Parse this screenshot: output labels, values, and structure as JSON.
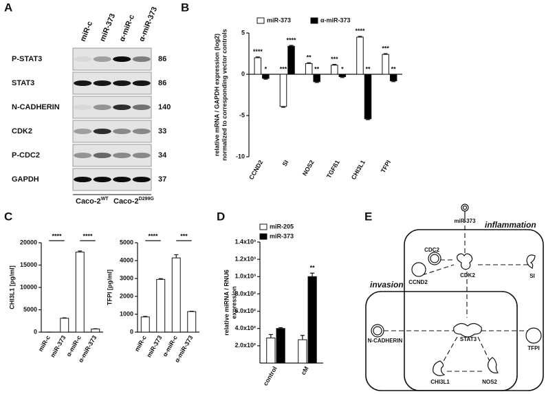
{
  "panels": [
    "A",
    "B",
    "C",
    "D",
    "E"
  ],
  "blot": {
    "columns": [
      "miR-c",
      "miR-373",
      "α-miR-c",
      "α-miR-373"
    ],
    "rows": [
      {
        "label": "P-STAT3",
        "mw": 86
      },
      {
        "label": "STAT3",
        "mw": 86
      },
      {
        "label": "N-CADHERIN",
        "mw": 140
      },
      {
        "label": "CDK2",
        "mw": 33
      },
      {
        "label": "P-CDC2",
        "mw": 34
      },
      {
        "label": "GAPDH",
        "mw": 37
      }
    ],
    "groups": [
      {
        "name": "Caco-2",
        "sup": "WT"
      },
      {
        "name": "Caco-2",
        "sup": "D299G"
      }
    ]
  },
  "chart_data": [
    {
      "type": "bar",
      "ylabel": [
        "relative mRNA / GAPDH expression (log2)",
        "normalized to corresponding vector controls"
      ],
      "categories": [
        "CCND2",
        "SI",
        "NOS2",
        "TGFß1",
        "CHI3L1",
        "TFPI"
      ],
      "series": [
        {
          "name": "miR-373",
          "color": "#ffffff",
          "values": [
            2.0,
            -3.9,
            1.3,
            1.1,
            4.5,
            2.4
          ],
          "errors": [
            0.1,
            0.1,
            0.1,
            0.1,
            0.1,
            0.1
          ],
          "significance": [
            "****",
            "***",
            "**",
            "***",
            "****",
            "***"
          ]
        },
        {
          "name": "α-miR-373",
          "color": "#000000",
          "values": [
            -0.5,
            3.4,
            -0.9,
            -0.3,
            -5.4,
            -0.8
          ],
          "errors": [
            0.1,
            0.1,
            0.1,
            0.1,
            0.1,
            0.1
          ],
          "significance": [
            "*",
            "****",
            "**",
            "*",
            "**",
            "**"
          ]
        }
      ],
      "ylim": [
        -10,
        5
      ],
      "yticks": [
        -10,
        -5,
        0,
        5
      ]
    },
    {
      "type": "bar",
      "ylabel": [
        "CHI3L1 [pg/ml]"
      ],
      "categories": [
        "miR-c",
        "miR-373",
        "α-miR-c",
        "α-miR-373"
      ],
      "values": [
        0,
        3100,
        17900,
        700
      ],
      "errors": [
        0,
        100,
        250,
        50
      ],
      "color": "#ffffff",
      "significance": [
        null,
        "****",
        null,
        "****"
      ],
      "ylim": [
        0,
        20000
      ],
      "yticks": [
        0,
        5000,
        10000,
        15000,
        20000
      ]
    },
    {
      "type": "bar",
      "ylabel": [
        "TFPI [pg/ml]"
      ],
      "categories": [
        "miR-c",
        "miR-373",
        "α-miR-c",
        "α-miR-373"
      ],
      "values": [
        850,
        2950,
        4150,
        1150
      ],
      "errors": [
        30,
        40,
        180,
        20
      ],
      "color": "#ffffff",
      "significance": [
        null,
        "****",
        null,
        "***"
      ],
      "ylim": [
        0,
        5000
      ],
      "yticks": [
        0,
        1000,
        2000,
        3000,
        4000,
        5000
      ]
    },
    {
      "type": "bar",
      "ylabel": [
        "relative miRNA / RNU6",
        "expression"
      ],
      "categories": [
        "control",
        "cM"
      ],
      "series": [
        {
          "name": "miR-205",
          "color": "#ffffff",
          "values": [
            290,
            270
          ],
          "errors": [
            40,
            50
          ],
          "significance": [
            null,
            null
          ]
        },
        {
          "name": "miR-373",
          "color": "#000000",
          "values": [
            400,
            1000
          ],
          "errors": [
            10,
            40
          ],
          "significance": [
            null,
            "**"
          ]
        }
      ],
      "ylim": [
        0,
        1400
      ],
      "yticks": [
        {
          "value": 200,
          "label": "2.0x10²"
        },
        {
          "value": 400,
          "label": "4.0x10²"
        },
        {
          "value": 600,
          "label": "6.0x10²"
        },
        {
          "value": 800,
          "label": "8.0x10²"
        },
        {
          "value": 1000,
          "label": "1.0x10³"
        },
        {
          "value": 1200,
          "label": "1.2x10³"
        },
        {
          "value": 1400,
          "label": "1.4x10³"
        }
      ]
    }
  ],
  "diagram": {
    "inflammation": "inflammation",
    "invasion": "invasion",
    "nodes": {
      "mir373": "miR-373",
      "cdc2": "CDC2",
      "cdk2": "CDK2",
      "ccnd2": "CCND2",
      "si": "SI",
      "stat3": "STAT3",
      "ncad": "N-CADHERIN",
      "tfpi": "TFPI",
      "chi3l1": "CHI3L1",
      "nos2": "NOS2"
    }
  }
}
